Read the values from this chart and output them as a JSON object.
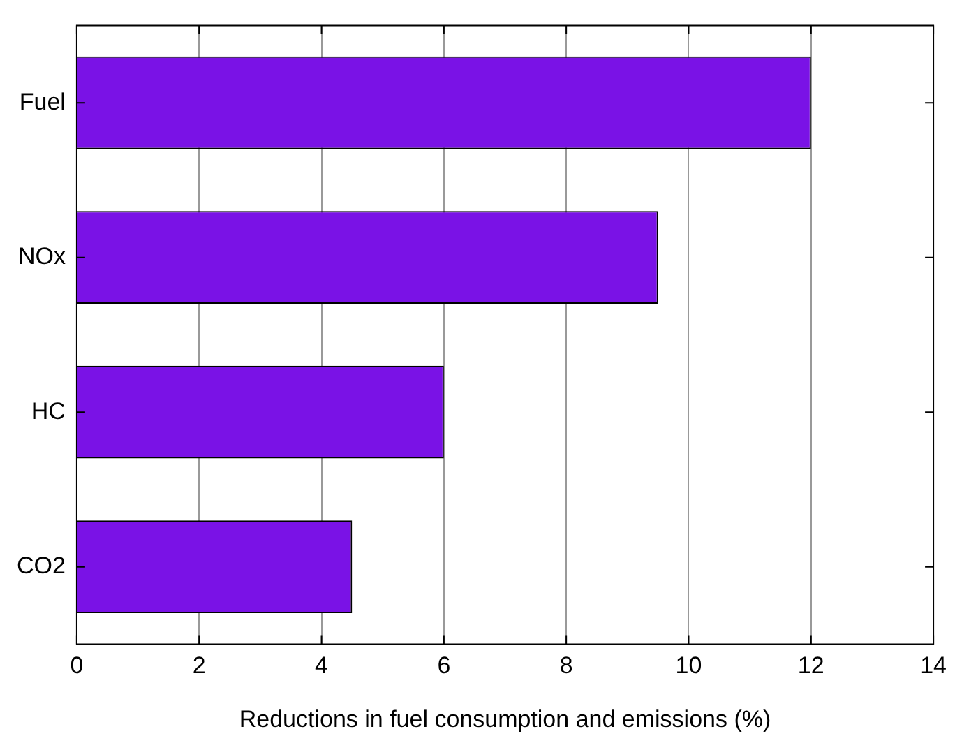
{
  "chart_data": {
    "type": "bar",
    "orientation": "horizontal",
    "xlabel": "Reductions in fuel consumption and emissions (%)",
    "categories": [
      "Fuel",
      "NOx",
      "HC",
      "CO2"
    ],
    "values": [
      12,
      9.5,
      6,
      4.5
    ],
    "color": "#7a12e6",
    "xlim": [
      0,
      14
    ],
    "xticks": [
      0,
      2,
      4,
      6,
      8,
      10,
      12,
      14
    ],
    "grid": "x",
    "legend": false
  }
}
